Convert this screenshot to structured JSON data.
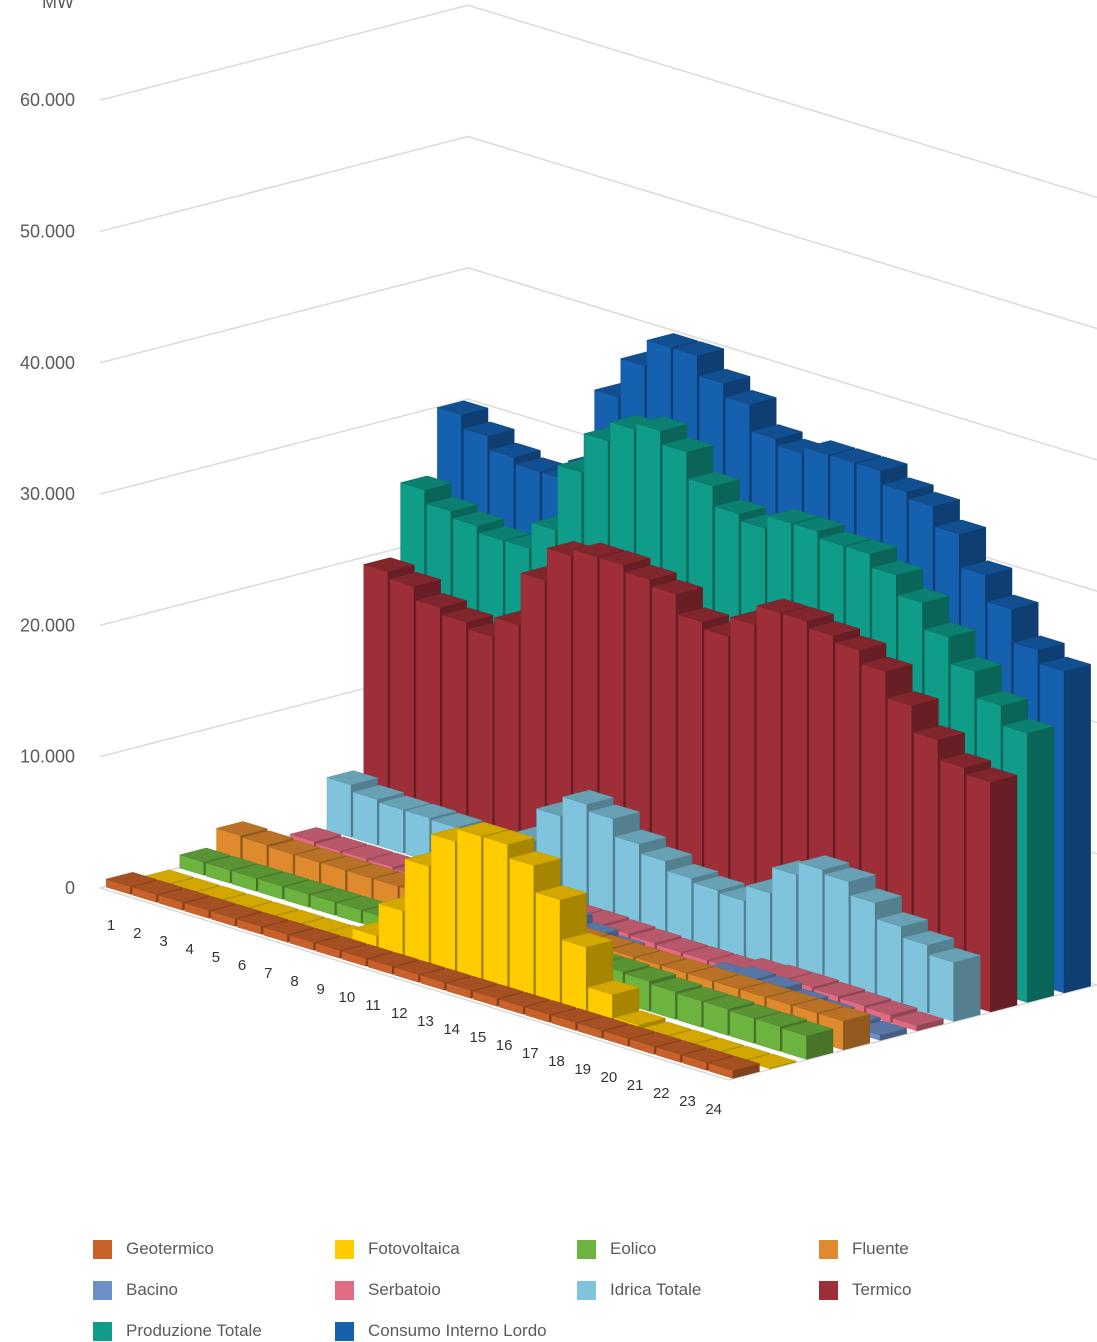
{
  "chart_data": {
    "type": "bar",
    "subtype": "3d-clustered-depth",
    "ylabel": "MW",
    "ylim": [
      0,
      60000
    ],
    "yticks": [
      "0",
      "10.000",
      "20.000",
      "30.000",
      "40.000",
      "50.000",
      "60.000"
    ],
    "grid": true,
    "legend_position": "bottom",
    "categories": [
      "1",
      "2",
      "3",
      "4",
      "5",
      "6",
      "7",
      "8",
      "9",
      "10",
      "11",
      "12",
      "13",
      "14",
      "15",
      "16",
      "17",
      "18",
      "19",
      "20",
      "21",
      "22",
      "23",
      "24"
    ],
    "series": [
      {
        "name": "Geotermico",
        "color": "#C8622A",
        "values": [
          600,
          600,
          600,
          600,
          600,
          600,
          600,
          600,
          600,
          600,
          600,
          600,
          600,
          600,
          600,
          600,
          600,
          600,
          600,
          600,
          600,
          600,
          600,
          600
        ]
      },
      {
        "name": "Fotovoltaica",
        "color": "#FFCC00",
        "values": [
          0,
          0,
          0,
          0,
          0,
          0,
          0,
          100,
          1000,
          3500,
          7500,
          10000,
          11000,
          11000,
          10000,
          8000,
          5000,
          2000,
          300,
          0,
          0,
          0,
          0,
          0
        ]
      },
      {
        "name": "Eolico",
        "color": "#6DB33F",
        "values": [
          1000,
          1000,
          1000,
          1000,
          1000,
          1000,
          1000,
          1000,
          1000,
          1000,
          1000,
          1100,
          1500,
          2000,
          2200,
          2400,
          2400,
          2300,
          2100,
          2000,
          2000,
          1900,
          1900,
          1800
        ]
      },
      {
        "name": "Fluente",
        "color": "#E08A2E",
        "values": [
          2300,
          2200,
          2100,
          2100,
          2100,
          2100,
          2100,
          2100,
          2100,
          2100,
          2200,
          2200,
          2200,
          2200,
          2200,
          2200,
          2200,
          2200,
          2200,
          2200,
          2200,
          2200,
          2200,
          2200
        ]
      },
      {
        "name": "Bacino",
        "color": "#6B8FC7",
        "values": [
          400,
          300,
          300,
          300,
          200,
          200,
          200,
          300,
          1000,
          2000,
          2200,
          1800,
          1200,
          800,
          600,
          500,
          600,
          1200,
          1500,
          1400,
          1000,
          800,
          600,
          400
        ]
      },
      {
        "name": "Serbatoio",
        "color": "#E06B82",
        "values": [
          400,
          300,
          300,
          300,
          200,
          200,
          200,
          300,
          500,
          800,
          800,
          800,
          700,
          600,
          500,
          500,
          500,
          800,
          900,
          900,
          800,
          700,
          600,
          400
        ]
      },
      {
        "name": "Idrica Totale",
        "color": "#7FC3DC",
        "values": [
          4000,
          3500,
          3300,
          3300,
          3200,
          3100,
          3100,
          4000,
          6500,
          8000,
          7500,
          6200,
          5500,
          4800,
          4500,
          4300,
          5500,
          7500,
          8500,
          8200,
          7200,
          6000,
          5200,
          4500
        ]
      },
      {
        "name": "Termico",
        "color": "#9E2E38",
        "values": [
          19500,
          19000,
          18000,
          17500,
          17000,
          18500,
          22500,
          25000,
          25500,
          25500,
          25000,
          24500,
          23000,
          22500,
          24000,
          25500,
          25500,
          25000,
          24500,
          23500,
          21500,
          19500,
          18000,
          17500
        ]
      },
      {
        "name": "Produzione Totale",
        "color": "#0F9C88",
        "values": [
          25000,
          24000,
          23500,
          23000,
          23000,
          25000,
          30000,
          33000,
          34500,
          35000,
          34000,
          32000,
          30500,
          30000,
          31000,
          31000,
          30500,
          30500,
          29500,
          28000,
          26000,
          24000,
          22000,
          20500
        ]
      },
      {
        "name": "Consumo Interno Lordo",
        "color": "#1660B0",
        "values": [
          30000,
          29000,
          28000,
          27500,
          27500,
          29000,
          35000,
          38000,
          40000,
          40000,
          38500,
          37500,
          35500,
          35000,
          35500,
          35500,
          35500,
          34500,
          34000,
          32500,
          30000,
          28000,
          25500,
          24500
        ]
      }
    ]
  },
  "legend": [
    {
      "label": "Geotermico",
      "color": "#C8622A"
    },
    {
      "label": "Fotovoltaica",
      "color": "#FFCC00"
    },
    {
      "label": "Eolico",
      "color": "#6DB33F"
    },
    {
      "label": "Fluente",
      "color": "#E08A2E"
    },
    {
      "label": "Bacino",
      "color": "#6B8FC7"
    },
    {
      "label": "Serbatoio",
      "color": "#E06B82"
    },
    {
      "label": "Idrica Totale",
      "color": "#7FC3DC"
    },
    {
      "label": "Termico",
      "color": "#9E2E38"
    },
    {
      "label": "Produzione Totale",
      "color": "#0F9C88"
    },
    {
      "label": "Consumo Interno Lordo",
      "color": "#1660B0"
    }
  ]
}
